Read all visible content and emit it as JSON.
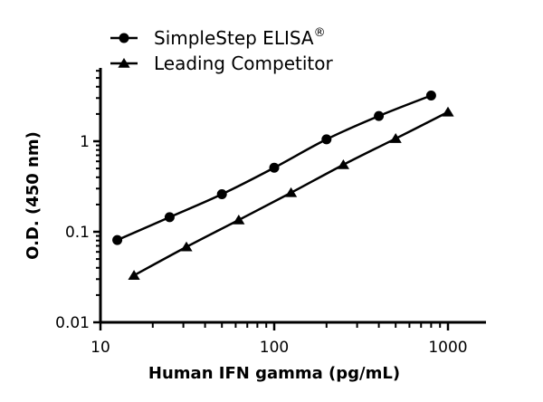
{
  "chart_data": {
    "type": "line",
    "title": "",
    "xlabel": "Human IFN gamma (pg/mL)",
    "ylabel": "O.D. (450 nm)",
    "xscale": "log",
    "yscale": "log",
    "xlim": [
      10,
      1600
    ],
    "ylim": [
      0.01,
      6.3
    ],
    "xticks": [
      "10",
      "100",
      "1000"
    ],
    "yticks": [
      "0.01",
      "0.1",
      "1"
    ],
    "grid": false,
    "legend_position": "top-left",
    "series": [
      {
        "name": "SimpleStep ELISA®",
        "marker": "circle",
        "x": [
          12.5,
          25,
          50,
          100,
          200,
          400,
          800
        ],
        "y": [
          0.081,
          0.145,
          0.26,
          0.51,
          1.05,
          1.9,
          3.2
        ]
      },
      {
        "name": "Leading Competitor",
        "marker": "triangle",
        "x": [
          15.6,
          31.25,
          62.5,
          125,
          250,
          500,
          1000
        ],
        "y": [
          0.033,
          0.068,
          0.135,
          0.27,
          0.55,
          1.07,
          2.1
        ]
      }
    ]
  },
  "legend": {
    "items": [
      {
        "label": "SimpleStep ELISA",
        "sup": "®"
      },
      {
        "label": "Leading Competitor",
        "sup": ""
      }
    ]
  },
  "colors": {
    "line": "#000000",
    "background": "#ffffff"
  }
}
